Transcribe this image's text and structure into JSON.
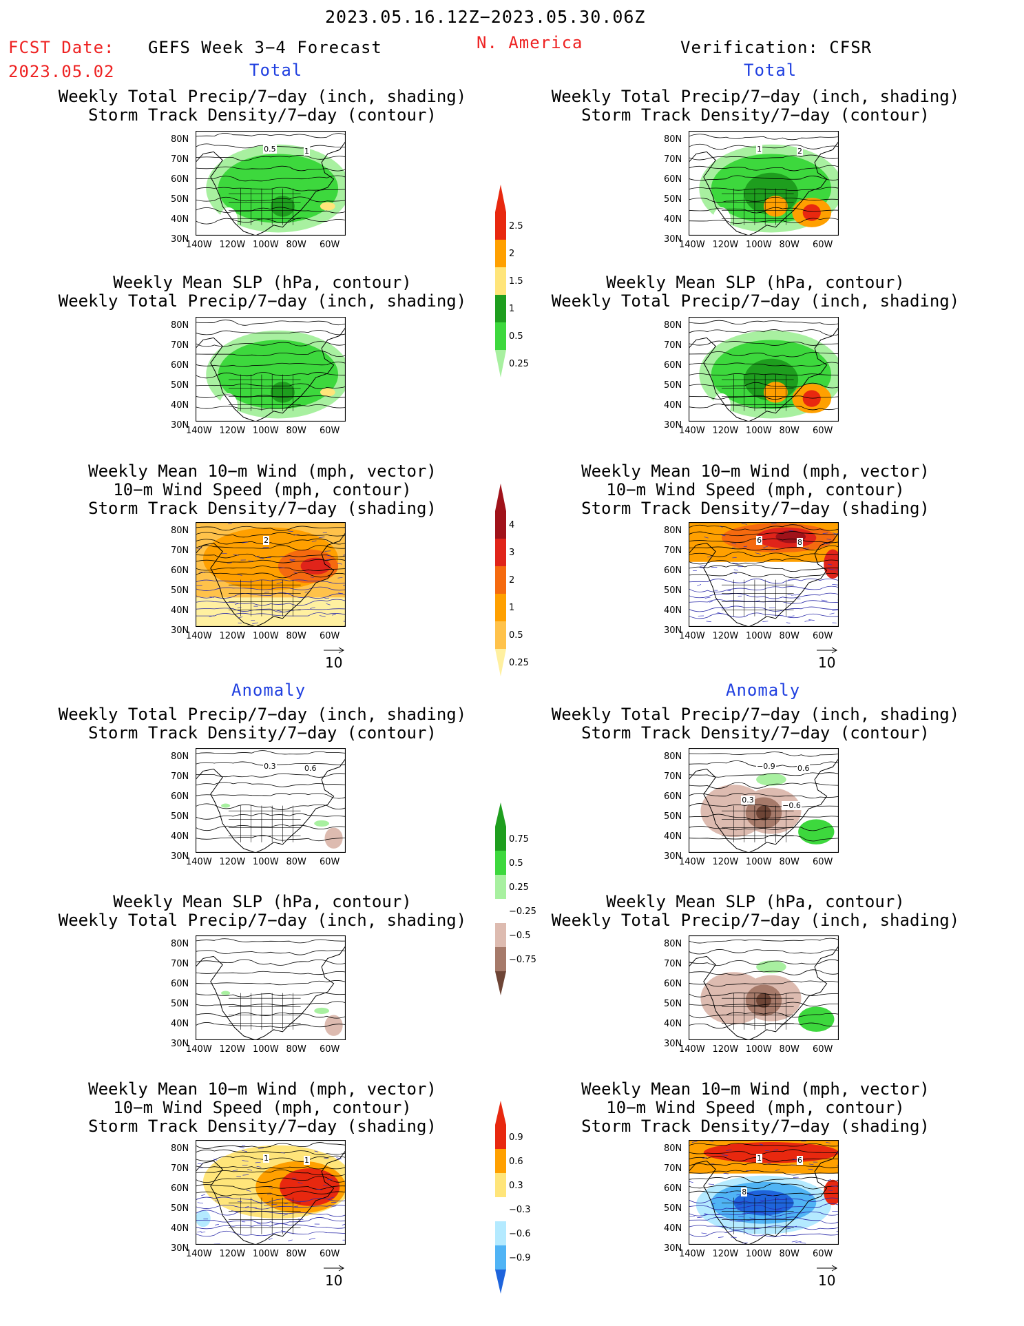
{
  "header": {
    "period": "2023.05.16.12Z−2023.05.30.06Z",
    "region": "N. America",
    "fcst_label": "FCST Date:",
    "fcst_date": "2023.05.02",
    "model_title": "GEFS Week 3−4 Forecast",
    "verification": "Verification: CFSR"
  },
  "sections": {
    "total": "Total",
    "anomaly": "Anomaly"
  },
  "titles": {
    "precip_storm": [
      "Weekly Total Precip/7−day (inch, shading)",
      "Storm Track Density/7−day (contour)"
    ],
    "slp_precip": [
      "Weekly Mean SLP (hPa, contour)",
      "Weekly Total Precip/7−day (inch, shading)"
    ],
    "wind_storm": [
      "Weekly Mean 10−m Wind (mph, vector)",
      "10−m Wind Speed (mph, contour)",
      "Storm Track Density/7−day (shading)"
    ]
  },
  "axes": {
    "lat_labels": [
      "80N",
      "70N",
      "60N",
      "50N",
      "40N",
      "30N"
    ],
    "lon_labels": [
      "140W",
      "120W",
      "100W",
      "80W",
      "60W"
    ]
  },
  "vector_ref": "10",
  "colorbars": [
    {
      "id": "precip-total",
      "labels": [
        "2.5",
        "2",
        "1.5",
        "1",
        "0.5",
        "0.25"
      ],
      "colors": [
        "#e8280f",
        "#ffa000",
        "#ffe57a",
        "#1e9e1e",
        "#3dd83d",
        "#a8f0a0"
      ]
    },
    {
      "id": "storm-total",
      "labels": [
        "4",
        "3",
        "2",
        "1",
        "0.5",
        "0.25"
      ],
      "colors": [
        "#a0121a",
        "#e0241a",
        "#f56a0f",
        "#ffa000",
        "#ffc24a",
        "#fff0a0"
      ]
    },
    {
      "id": "precip-anom",
      "labels": [
        "0.75",
        "0.5",
        "0.25",
        "−0.25",
        "−0.5",
        "−0.75"
      ],
      "colors": [
        "#1e9e1e",
        "#3dd83d",
        "#a8f0a0",
        "#ffffff",
        "#ddbbb0",
        "#a67a6a",
        "#6e4536"
      ]
    },
    {
      "id": "storm-anom",
      "labels": [
        "0.9",
        "0.6",
        "0.3",
        "−0.3",
        "−0.6",
        "−0.9"
      ],
      "colors": [
        "#e8280f",
        "#ffa000",
        "#ffe57a",
        "#ffffff",
        "#b4eaff",
        "#50b4f5",
        "#1e64dc"
      ]
    }
  ],
  "panel_labels": {
    "fcst_storm_total": [
      "0.5",
      "1"
    ],
    "obs_storm_total": [
      "1",
      "2"
    ],
    "fcst_wind_total": [
      "2"
    ],
    "obs_wind_total": [
      "6",
      "8"
    ],
    "fcst_storm_anom": [
      "0.3",
      "0.6"
    ],
    "obs_storm_anom": [
      "−0.9",
      "0.6",
      "0.3",
      "−0.6"
    ],
    "fcst_wind_anom": [
      "1",
      "1"
    ],
    "obs_wind_anom": [
      "1",
      "6",
      "8"
    ]
  },
  "colors": {
    "title_red": "#ee2222",
    "section_blue": "#1f3fe0"
  }
}
